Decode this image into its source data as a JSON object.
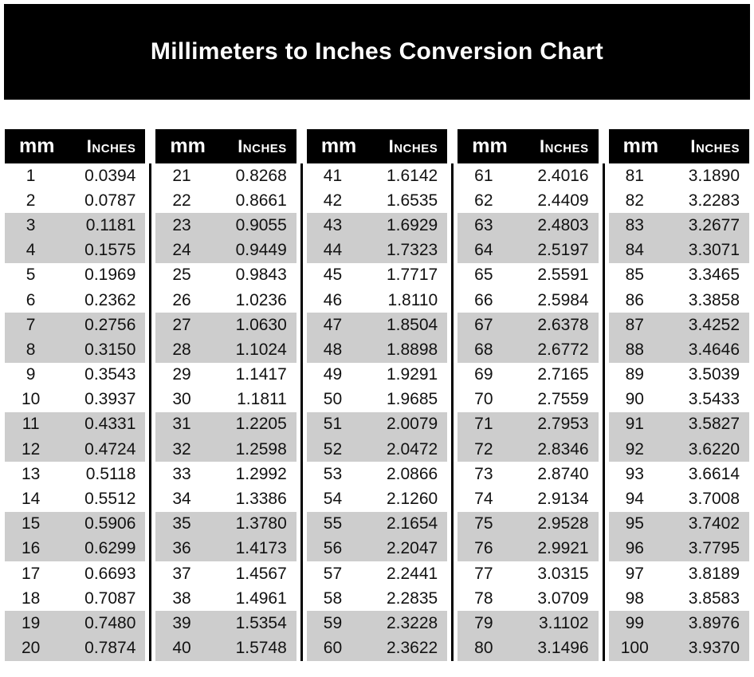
{
  "title": "Millimeters to Inches Conversion Chart",
  "header": {
    "mm": "mm",
    "inches": "Inches"
  },
  "colors": {
    "banner_bg": "#000000",
    "header_bg": "#000000",
    "header_text": "#ffffff",
    "title_text": "#ffffff",
    "divider": "#000000",
    "stripe": "#cdcdcd",
    "body_text": "#121212"
  },
  "tables": [
    {
      "rows": [
        [
          "1",
          "0.0394"
        ],
        [
          "2",
          "0.0787"
        ],
        [
          "3",
          "0.1181"
        ],
        [
          "4",
          "0.1575"
        ],
        [
          "5",
          "0.1969"
        ],
        [
          "6",
          "0.2362"
        ],
        [
          "7",
          "0.2756"
        ],
        [
          "8",
          "0.3150"
        ],
        [
          "9",
          "0.3543"
        ],
        [
          "10",
          "0.3937"
        ],
        [
          "11",
          "0.4331"
        ],
        [
          "12",
          "0.4724"
        ],
        [
          "13",
          "0.5118"
        ],
        [
          "14",
          "0.5512"
        ],
        [
          "15",
          "0.5906"
        ],
        [
          "16",
          "0.6299"
        ],
        [
          "17",
          "0.6693"
        ],
        [
          "18",
          "0.7087"
        ],
        [
          "19",
          "0.7480"
        ],
        [
          "20",
          "0.7874"
        ]
      ]
    },
    {
      "rows": [
        [
          "21",
          "0.8268"
        ],
        [
          "22",
          "0.8661"
        ],
        [
          "23",
          "0.9055"
        ],
        [
          "24",
          "0.9449"
        ],
        [
          "25",
          "0.9843"
        ],
        [
          "26",
          "1.0236"
        ],
        [
          "27",
          "1.0630"
        ],
        [
          "28",
          "1.1024"
        ],
        [
          "29",
          "1.1417"
        ],
        [
          "30",
          "1.1811"
        ],
        [
          "31",
          "1.2205"
        ],
        [
          "32",
          "1.2598"
        ],
        [
          "33",
          "1.2992"
        ],
        [
          "34",
          "1.3386"
        ],
        [
          "35",
          "1.3780"
        ],
        [
          "36",
          "1.4173"
        ],
        [
          "37",
          "1.4567"
        ],
        [
          "38",
          "1.4961"
        ],
        [
          "39",
          "1.5354"
        ],
        [
          "40",
          "1.5748"
        ]
      ]
    },
    {
      "rows": [
        [
          "41",
          "1.6142"
        ],
        [
          "42",
          "1.6535"
        ],
        [
          "43",
          "1.6929"
        ],
        [
          "44",
          "1.7323"
        ],
        [
          "45",
          "1.7717"
        ],
        [
          "46",
          "1.8110"
        ],
        [
          "47",
          "1.8504"
        ],
        [
          "48",
          "1.8898"
        ],
        [
          "49",
          "1.9291"
        ],
        [
          "50",
          "1.9685"
        ],
        [
          "51",
          "2.0079"
        ],
        [
          "52",
          "2.0472"
        ],
        [
          "53",
          "2.0866"
        ],
        [
          "54",
          "2.1260"
        ],
        [
          "55",
          "2.1654"
        ],
        [
          "56",
          "2.2047"
        ],
        [
          "57",
          "2.2441"
        ],
        [
          "58",
          "2.2835"
        ],
        [
          "59",
          "2.3228"
        ],
        [
          "60",
          "2.3622"
        ]
      ]
    },
    {
      "rows": [
        [
          "61",
          "2.4016"
        ],
        [
          "62",
          "2.4409"
        ],
        [
          "63",
          "2.4803"
        ],
        [
          "64",
          "2.5197"
        ],
        [
          "65",
          "2.5591"
        ],
        [
          "66",
          "2.5984"
        ],
        [
          "67",
          "2.6378"
        ],
        [
          "68",
          "2.6772"
        ],
        [
          "69",
          "2.7165"
        ],
        [
          "70",
          "2.7559"
        ],
        [
          "71",
          "2.7953"
        ],
        [
          "72",
          "2.8346"
        ],
        [
          "73",
          "2.8740"
        ],
        [
          "74",
          "2.9134"
        ],
        [
          "75",
          "2.9528"
        ],
        [
          "76",
          "2.9921"
        ],
        [
          "77",
          "3.0315"
        ],
        [
          "78",
          "3.0709"
        ],
        [
          "79",
          "3.1102"
        ],
        [
          "80",
          "3.1496"
        ]
      ]
    },
    {
      "rows": [
        [
          "81",
          "3.1890"
        ],
        [
          "82",
          "3.2283"
        ],
        [
          "83",
          "3.2677"
        ],
        [
          "84",
          "3.3071"
        ],
        [
          "85",
          "3.3465"
        ],
        [
          "86",
          "3.3858"
        ],
        [
          "87",
          "3.4252"
        ],
        [
          "88",
          "3.4646"
        ],
        [
          "89",
          "3.5039"
        ],
        [
          "90",
          "3.5433"
        ],
        [
          "91",
          "3.5827"
        ],
        [
          "92",
          "3.6220"
        ],
        [
          "93",
          "3.6614"
        ],
        [
          "94",
          "3.7008"
        ],
        [
          "95",
          "3.7402"
        ],
        [
          "96",
          "3.7795"
        ],
        [
          "97",
          "3.8189"
        ],
        [
          "98",
          "3.8583"
        ],
        [
          "99",
          "3.8976"
        ],
        [
          "100",
          "3.9370"
        ]
      ]
    }
  ]
}
